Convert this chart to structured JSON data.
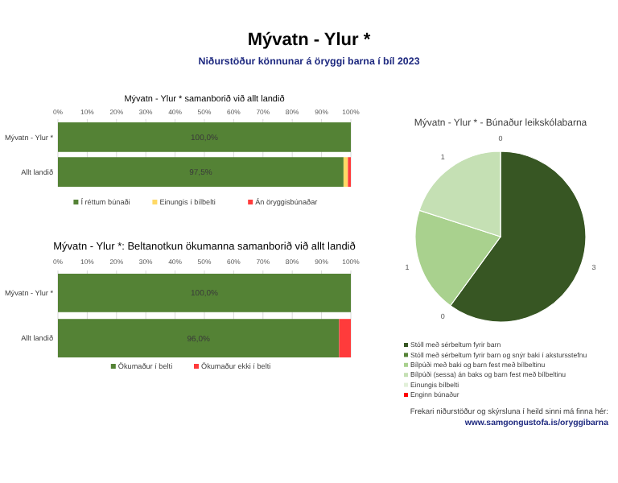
{
  "chart_data": [
    {
      "type": "bar",
      "title": "Mývatn - Ylur *",
      "subtitle": "Niðurstöður könnunar á öryggi barna í bíl 2023",
      "annotations": [
        "Mývatn - Ylur * samanborið við allt landið"
      ],
      "orientation": "horizontal",
      "stacked": true,
      "categories": [
        "Mývatn - Ylur *",
        "Allt landið"
      ],
      "series": [
        {
          "name": "Í réttum búnaði",
          "color": "#548235",
          "values": [
            100,
            97.5
          ],
          "value_labels": [
            "100,0%",
            "97,5%"
          ]
        },
        {
          "name": "Einungis í bílbelti",
          "color": "#ffd966",
          "values": [
            0,
            1.5
          ]
        },
        {
          "name": "Án öryggisbúnaðar",
          "color": "#ff3b3b",
          "values": [
            0,
            1
          ]
        }
      ],
      "xlim": [
        0,
        100
      ],
      "xticks": [
        {
          "value": 0,
          "label": "0%"
        },
        {
          "value": 10,
          "label": "10%"
        },
        {
          "value": 20,
          "label": "20%"
        },
        {
          "value": 30,
          "label": "30%"
        },
        {
          "value": 40,
          "label": "40%"
        },
        {
          "value": 50,
          "label": "50%"
        },
        {
          "value": 60,
          "label": "60%"
        },
        {
          "value": 70,
          "label": "70%"
        },
        {
          "value": 80,
          "label": "80%"
        },
        {
          "value": 90,
          "label": "90%"
        },
        {
          "value": 100,
          "label": "100%"
        }
      ],
      "grid": "x",
      "legend": "bottom"
    },
    {
      "type": "bar",
      "title": "Mývatn - Ylur *: Beltanotkun ökumanna samanborið við allt landið",
      "orientation": "horizontal",
      "stacked": true,
      "categories": [
        "Mývatn - Ylur *",
        "Allt landið"
      ],
      "series": [
        {
          "name": "Ökumaður í belti",
          "color": "#548235",
          "values": [
            100,
            96
          ],
          "value_labels": [
            "100,0%",
            "96,0%"
          ]
        },
        {
          "name": "Ökumaður ekki í belti",
          "color": "#ff3b3b",
          "values": [
            0,
            4
          ]
        }
      ],
      "xlim": [
        0,
        100
      ],
      "xticks": [
        {
          "value": 0,
          "label": "0%"
        },
        {
          "value": 10,
          "label": "10%"
        },
        {
          "value": 20,
          "label": "20%"
        },
        {
          "value": 30,
          "label": "30%"
        },
        {
          "value": 40,
          "label": "40%"
        },
        {
          "value": 50,
          "label": "50%"
        },
        {
          "value": 60,
          "label": "60%"
        },
        {
          "value": 70,
          "label": "70%"
        },
        {
          "value": 80,
          "label": "80%"
        },
        {
          "value": 90,
          "label": "90%"
        },
        {
          "value": 100,
          "label": "100%"
        }
      ],
      "grid": "x",
      "legend": "bottom"
    },
    {
      "type": "pie",
      "title": "Mývatn - Ylur * - Búnaður leikskólabarna",
      "categories": [
        "Stóll með sérbeltum fyrir barn",
        "Stóll með sérbeltum fyrir barn og snýr baki í akstursstefnu",
        "Bílpúði með baki og barn fest með bílbeltinu",
        "Bílpúði (sessa) án baks og barn fest með bílbeltinu",
        "Einungis bílbelti",
        "Enginn búnaður"
      ],
      "values": [
        3,
        0,
        1,
        1,
        0,
        0
      ],
      "value_labels": [
        "3",
        "0",
        "1",
        "1",
        "0",
        null
      ],
      "colors": [
        "#375623",
        "#548235",
        "#a9d18e",
        "#c5e0b4",
        "#e2f0d9",
        "#ff0000"
      ],
      "legend": "bottom",
      "annotations": [
        "Frekari niðurstöður og skýrsluna í heild sinni má finna hér:",
        "www.samgongustofa.is/oryggibarna"
      ]
    }
  ]
}
